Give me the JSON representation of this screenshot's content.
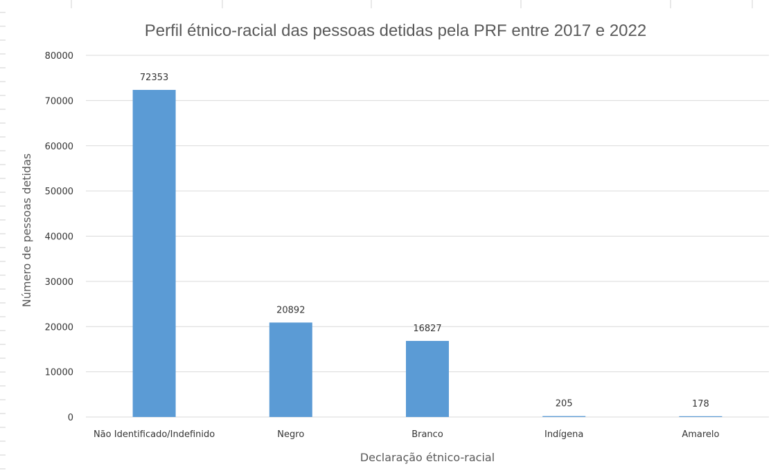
{
  "chart_data": {
    "type": "bar",
    "title": "Perfil étnico-racial das pessoas detidas pela PRF entre 2017 e 2022",
    "xlabel": "Declaração étnico-racial",
    "ylabel": "Número de pessoas detidas",
    "categories": [
      "Não Identificado/Indefinido",
      "Negro",
      "Branco",
      "Indígena",
      "Amarelo"
    ],
    "values": [
      72353,
      20892,
      16827,
      205,
      178
    ],
    "data_labels": [
      "72353",
      "20892",
      "16827",
      "205",
      "178"
    ],
    "yticks": [
      0,
      10000,
      20000,
      30000,
      40000,
      50000,
      60000,
      70000,
      80000
    ],
    "ylim": [
      0,
      80000
    ],
    "grid": true,
    "legend": "none",
    "colors": {
      "bar": "#5b9bd5",
      "grid": "#d9d9d9"
    }
  }
}
